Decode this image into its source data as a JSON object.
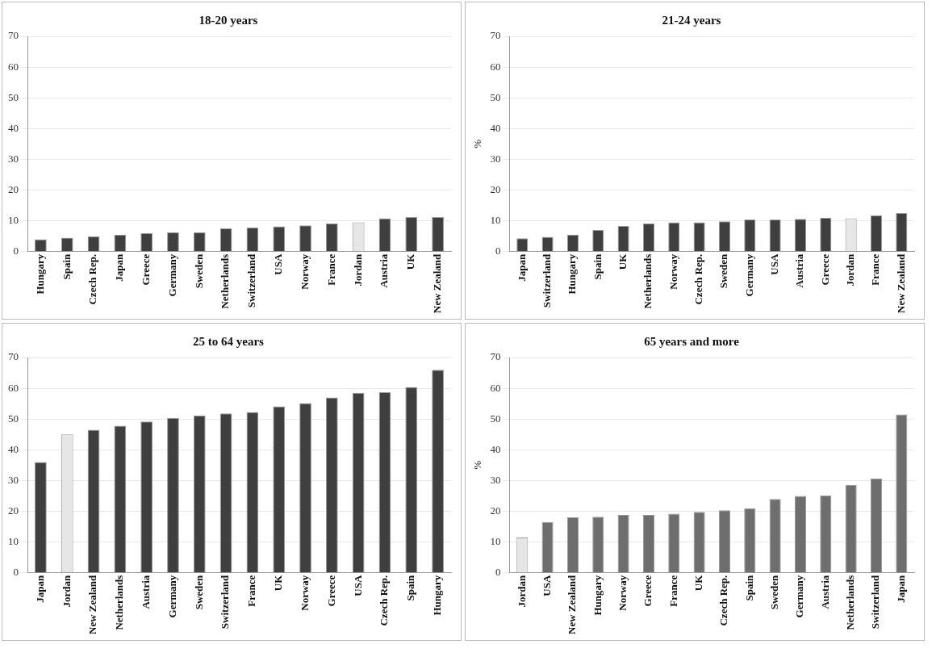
{
  "chart_data": [
    {
      "type": "bar",
      "title": "18-20 years",
      "categories": [
        "Hungary",
        "Spain",
        "Czech Rep.",
        "Japan",
        "Greece",
        "Germany",
        "Sweden",
        "Netherlands",
        "Switzerland",
        "USA",
        "Norway",
        "France",
        "Jordan",
        "Austria",
        "UK",
        "New Zealand"
      ],
      "values": [
        4,
        4.5,
        5,
        5.5,
        6,
        6.3,
        6.3,
        7.5,
        7.8,
        8.2,
        8.5,
        9.2,
        9.5,
        10.8,
        11.2,
        11.2
      ],
      "colors": [
        "#3f3f3f",
        "#3f3f3f",
        "#3f3f3f",
        "#3f3f3f",
        "#3f3f3f",
        "#3f3f3f",
        "#3f3f3f",
        "#3f3f3f",
        "#3f3f3f",
        "#3f3f3f",
        "#3f3f3f",
        "#3f3f3f",
        "#e6e6e6",
        "#3f3f3f",
        "#3f3f3f",
        "#3f3f3f"
      ],
      "ylim": [
        0,
        70
      ],
      "yticks": [
        0,
        10,
        20,
        30,
        40,
        50,
        60,
        70
      ],
      "grid": "y",
      "legend": false
    },
    {
      "type": "bar",
      "title": "21-24 years",
      "ylabel": "%",
      "categories": [
        "Japan",
        "Switzerland",
        "Hungary",
        "Spain",
        "UK",
        "Netherlands",
        "Norway",
        "Czech Rep.",
        "Sweden",
        "Germany",
        "USA",
        "Austria",
        "Greece",
        "Jordan",
        "France",
        "New Zealand"
      ],
      "values": [
        4.3,
        4.8,
        5.5,
        7,
        8.3,
        9.2,
        9.5,
        9.5,
        9.8,
        10.4,
        10.4,
        10.6,
        11,
        10.8,
        11.8,
        12.5
      ],
      "colors": [
        "#3f3f3f",
        "#3f3f3f",
        "#3f3f3f",
        "#3f3f3f",
        "#3f3f3f",
        "#3f3f3f",
        "#3f3f3f",
        "#3f3f3f",
        "#3f3f3f",
        "#3f3f3f",
        "#3f3f3f",
        "#3f3f3f",
        "#3f3f3f",
        "#e6e6e6",
        "#3f3f3f",
        "#3f3f3f"
      ],
      "ylim": [
        0,
        70
      ],
      "yticks": [
        0,
        10,
        20,
        30,
        40,
        50,
        60,
        70
      ],
      "grid": "y",
      "legend": false
    },
    {
      "type": "bar",
      "title": "25 to 64 years",
      "categories": [
        "Japan",
        "Jordan",
        "New Zealand",
        "Netherlands",
        "Austria",
        "Germany",
        "Sweden",
        "Switzerland",
        "France",
        "UK",
        "Norway",
        "Greece",
        "USA",
        "Czech Rep.",
        "Spain",
        "Hungary"
      ],
      "values": [
        36,
        45,
        46.5,
        47.8,
        49.2,
        50.4,
        51.2,
        51.8,
        52.3,
        54.1,
        55.2,
        57,
        58.5,
        58.7,
        60.4,
        66
      ],
      "colors": [
        "#3f3f3f",
        "#e6e6e6",
        "#3f3f3f",
        "#3f3f3f",
        "#3f3f3f",
        "#3f3f3f",
        "#3f3f3f",
        "#3f3f3f",
        "#3f3f3f",
        "#3f3f3f",
        "#3f3f3f",
        "#3f3f3f",
        "#3f3f3f",
        "#3f3f3f",
        "#3f3f3f",
        "#3f3f3f"
      ],
      "ylim": [
        0,
        70
      ],
      "yticks": [
        0,
        10,
        20,
        30,
        40,
        50,
        60,
        70
      ],
      "grid": "y",
      "legend": false
    },
    {
      "type": "bar",
      "title": "65 years and more",
      "ylabel": "%",
      "categories": [
        "Jordan",
        "USA",
        "New Zealand",
        "Hungary",
        "Norway",
        "Greece",
        "France",
        "UK",
        "Czech Rep.",
        "Spain",
        "Sweden",
        "Germany",
        "Austria",
        "Netherlands",
        "Switzerland",
        "Japan"
      ],
      "values": [
        11.5,
        16.5,
        18,
        18.2,
        18.8,
        18.8,
        19.2,
        19.8,
        20.3,
        21,
        24,
        25,
        25.2,
        28.5,
        30.7,
        51.5
      ],
      "colors": [
        "#e6e6e6",
        "#6e6e6e",
        "#6e6e6e",
        "#6e6e6e",
        "#6e6e6e",
        "#6e6e6e",
        "#6e6e6e",
        "#6e6e6e",
        "#6e6e6e",
        "#6e6e6e",
        "#6e6e6e",
        "#6e6e6e",
        "#6e6e6e",
        "#6e6e6e",
        "#6e6e6e",
        "#6e6e6e"
      ],
      "ylim": [
        0,
        70
      ],
      "yticks": [
        0,
        10,
        20,
        30,
        40,
        50,
        60,
        70
      ],
      "grid": "y",
      "legend": false
    }
  ]
}
